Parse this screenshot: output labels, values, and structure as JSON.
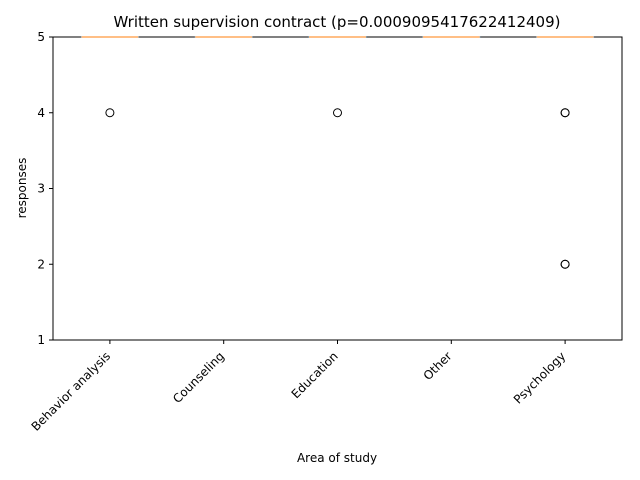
{
  "chart_data": {
    "type": "box",
    "title": "Written supervision contract (p=0.0009095417622412409)",
    "xlabel": "Area of study",
    "ylabel": "responses",
    "categories": [
      "Behavior analysis",
      "Counseling",
      "Education",
      "Other",
      "Psychology"
    ],
    "ylim": [
      1,
      5
    ],
    "yticks": [
      "1",
      "2",
      "3",
      "4",
      "5"
    ],
    "boxes": [
      {
        "category": "Behavior analysis",
        "q1": 5,
        "median": 5,
        "q3": 5,
        "whisker_low": 5,
        "whisker_high": 5,
        "outliers": [
          4
        ]
      },
      {
        "category": "Counseling",
        "q1": 5,
        "median": 5,
        "q3": 5,
        "whisker_low": 5,
        "whisker_high": 5,
        "outliers": []
      },
      {
        "category": "Education",
        "q1": 5,
        "median": 5,
        "q3": 5,
        "whisker_low": 5,
        "whisker_high": 5,
        "outliers": [
          4
        ]
      },
      {
        "category": "Other",
        "q1": 5,
        "median": 5,
        "q3": 5,
        "whisker_low": 5,
        "whisker_high": 5,
        "outliers": []
      },
      {
        "category": "Psychology",
        "q1": 5,
        "median": 5,
        "q3": 5,
        "whisker_low": 5,
        "whisker_high": 5,
        "outliers": [
          4,
          4,
          2,
          2
        ]
      }
    ],
    "grid": false,
    "legend": "none",
    "colors": {
      "box": "#1f77b4",
      "median": "#ff7f0e",
      "outlier_edge": "#000000"
    }
  }
}
